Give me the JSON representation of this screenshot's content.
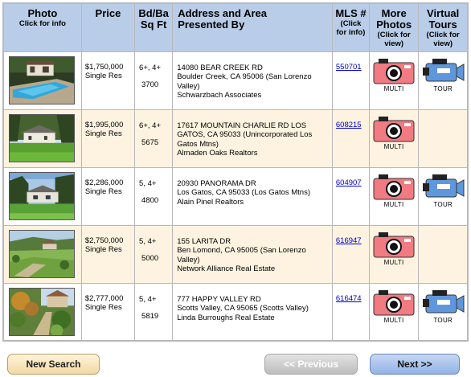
{
  "headers": {
    "photo": "Photo",
    "photo_sub": "Click for info",
    "price": "Price",
    "beds_line1": "Bd/Ba",
    "beds_line2": "Sq Ft",
    "addr_line1": "Address and Area",
    "addr_line2": "Presented By",
    "mls": "MLS #",
    "mls_sub1": "(Click",
    "mls_sub2": "for info)",
    "more_line1": "More",
    "more_line2": "Photos",
    "more_sub1": "(Click for",
    "more_sub2": "view)",
    "tours_line1": "Virtual",
    "tours_line2": "Tours",
    "tours_sub1": "(Click for",
    "tours_sub2": "view)"
  },
  "listings": [
    {
      "price": "$1,750,000",
      "type": "Single Res",
      "beds": "6+, 4+",
      "sqft": "3700",
      "address": "14080 BEAR CREEK RD",
      "area": "Boulder Creek, CA 95006  (San Lorenzo Valley)",
      "agent": "Schwarzbach Associates",
      "mls": "550701",
      "multi_label": "MULTI",
      "tour_label": "TOUR"
    },
    {
      "price": "$1,995,000",
      "type": "Single Res",
      "beds": "6+, 4+",
      "sqft": "5675",
      "address": "17617 MOUNTAIN CHARLIE RD LOS",
      "area": "GATOS, CA 95033  (Unincorporated Los Gatos Mtns)",
      "agent": "Almaden Oaks Realtors",
      "mls": "608215",
      "multi_label": "MULTI",
      "tour_label": ""
    },
    {
      "price": "$2,286,000",
      "type": "Single Res",
      "beds": "5, 4+",
      "sqft": "4800",
      "address": "20930 PANORAMA DR",
      "area": "Los Gatos, CA 95033  (Los Gatos Mtns)",
      "agent": "Alain Pinel Realtors",
      "mls": "604907",
      "multi_label": "MULTI",
      "tour_label": "TOUR"
    },
    {
      "price": "$2,750,000",
      "type": "Single Res",
      "beds": "5, 4+",
      "sqft": "5000",
      "address": "155 LARITA DR",
      "area": "Ben Lomond, CA 95005  (San Lorenzo Valley)",
      "agent": "Network Alliance Real Estate",
      "mls": "616947",
      "multi_label": "MULTI",
      "tour_label": ""
    },
    {
      "price": "$2,777,000",
      "type": "Single Res",
      "beds": "5, 4+",
      "sqft": "5819",
      "address": "777 HAPPY VALLEY RD",
      "area": "Scotts Valley, CA 95065  (Scotts Valley)",
      "agent": "Linda Burroughs Real Estate",
      "mls": "616474",
      "multi_label": "MULTI",
      "tour_label": "TOUR"
    }
  ],
  "buttons": {
    "new_search": "New Search",
    "previous": "<< Previous",
    "next": "Next >>"
  },
  "colors": {
    "header_bg": "#b9cde8",
    "alt_row_bg": "#fdf3e0",
    "link": "#0000cc",
    "multi_camera": "#f07b82",
    "tour_camera": "#5f97dd"
  }
}
